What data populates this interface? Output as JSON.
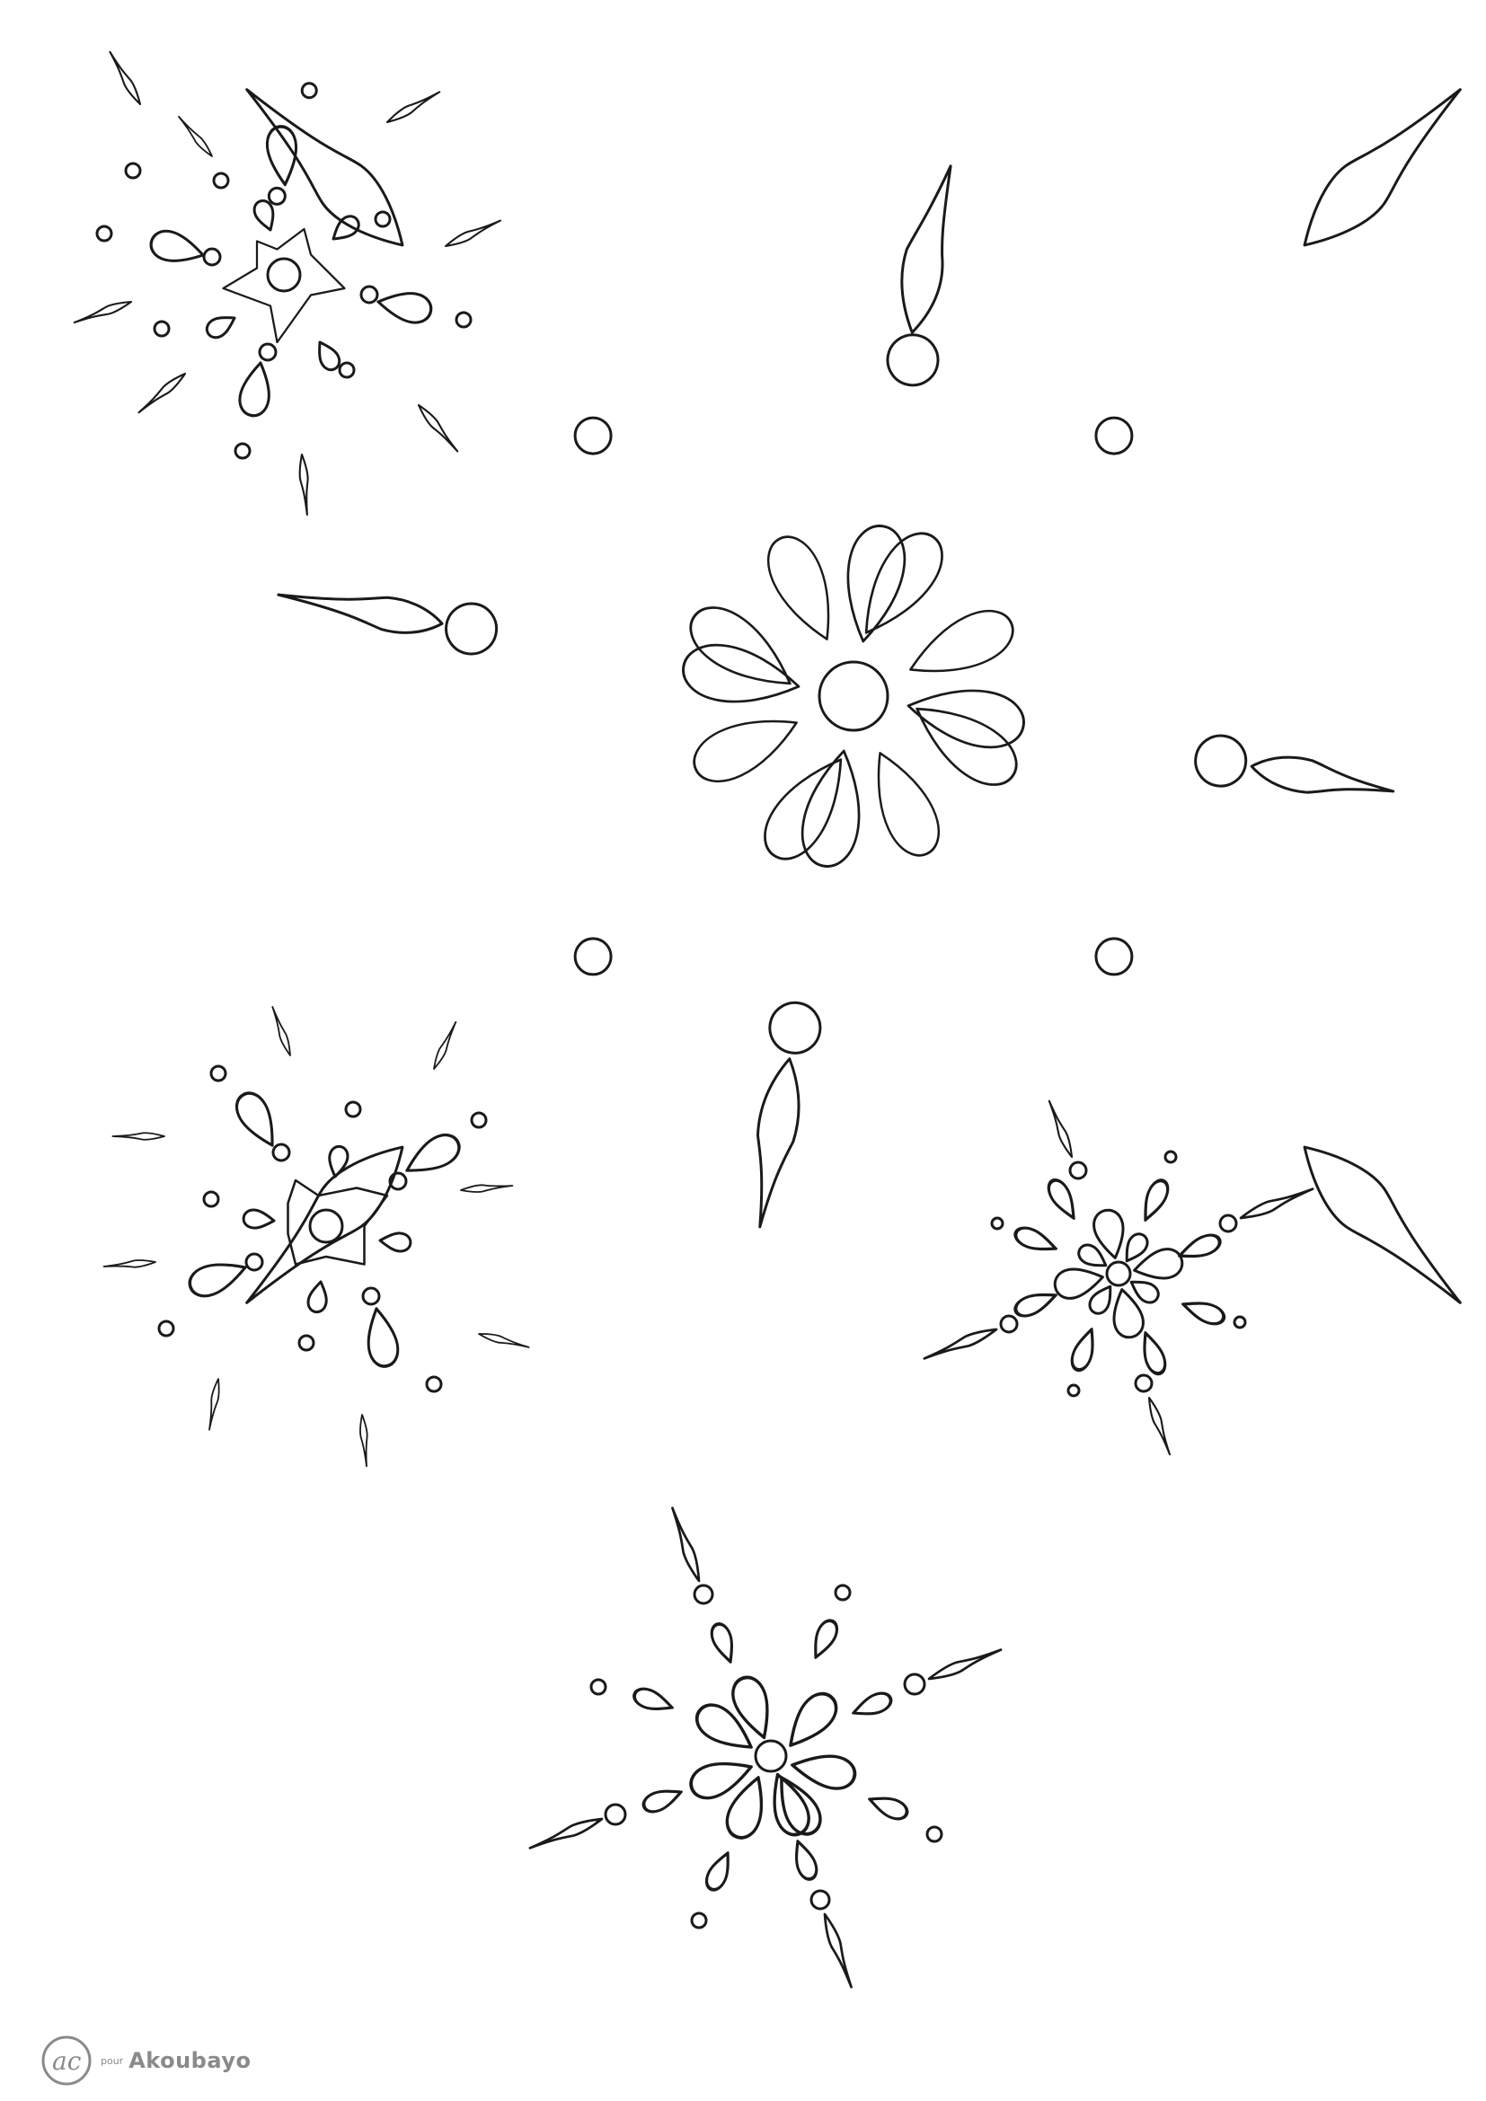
{
  "page": {
    "background": "#ffffff",
    "line_color": "#1a1a1a",
    "motif": "snowflake-icon"
  },
  "footer": {
    "logo_text": "ac",
    "prefix": "pour",
    "brand": "Akoubayo",
    "color": "#8a8a8a"
  }
}
